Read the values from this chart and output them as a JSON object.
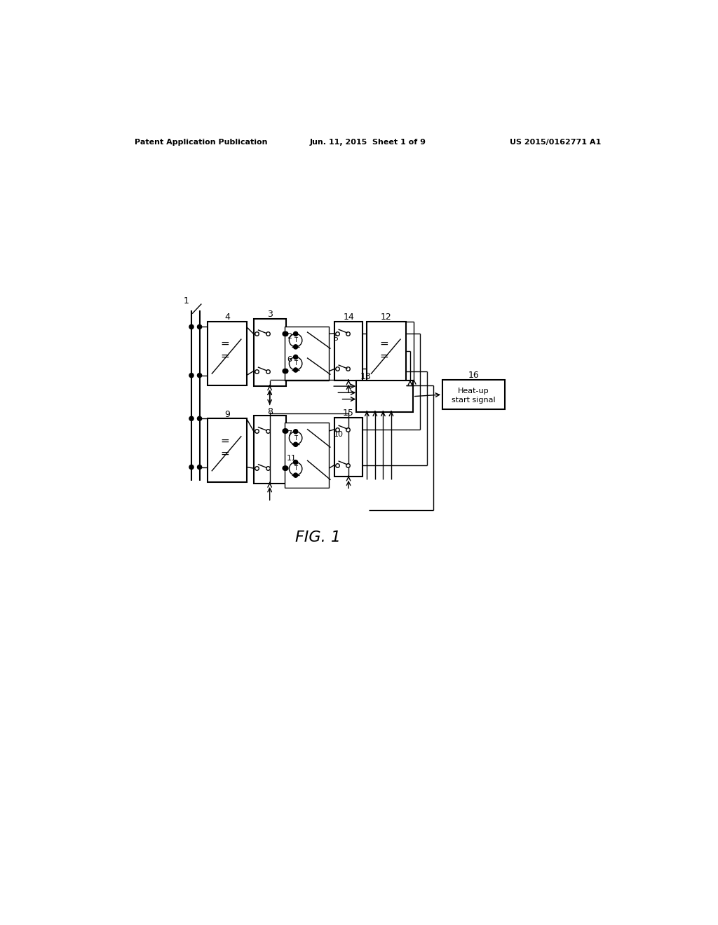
{
  "bg_color": "#ffffff",
  "header_left": "Patent Application Publication",
  "header_mid": "Jun. 11, 2015  Sheet 1 of 9",
  "header_right": "US 2015/0162771 A1",
  "caption": "FIG. 1"
}
